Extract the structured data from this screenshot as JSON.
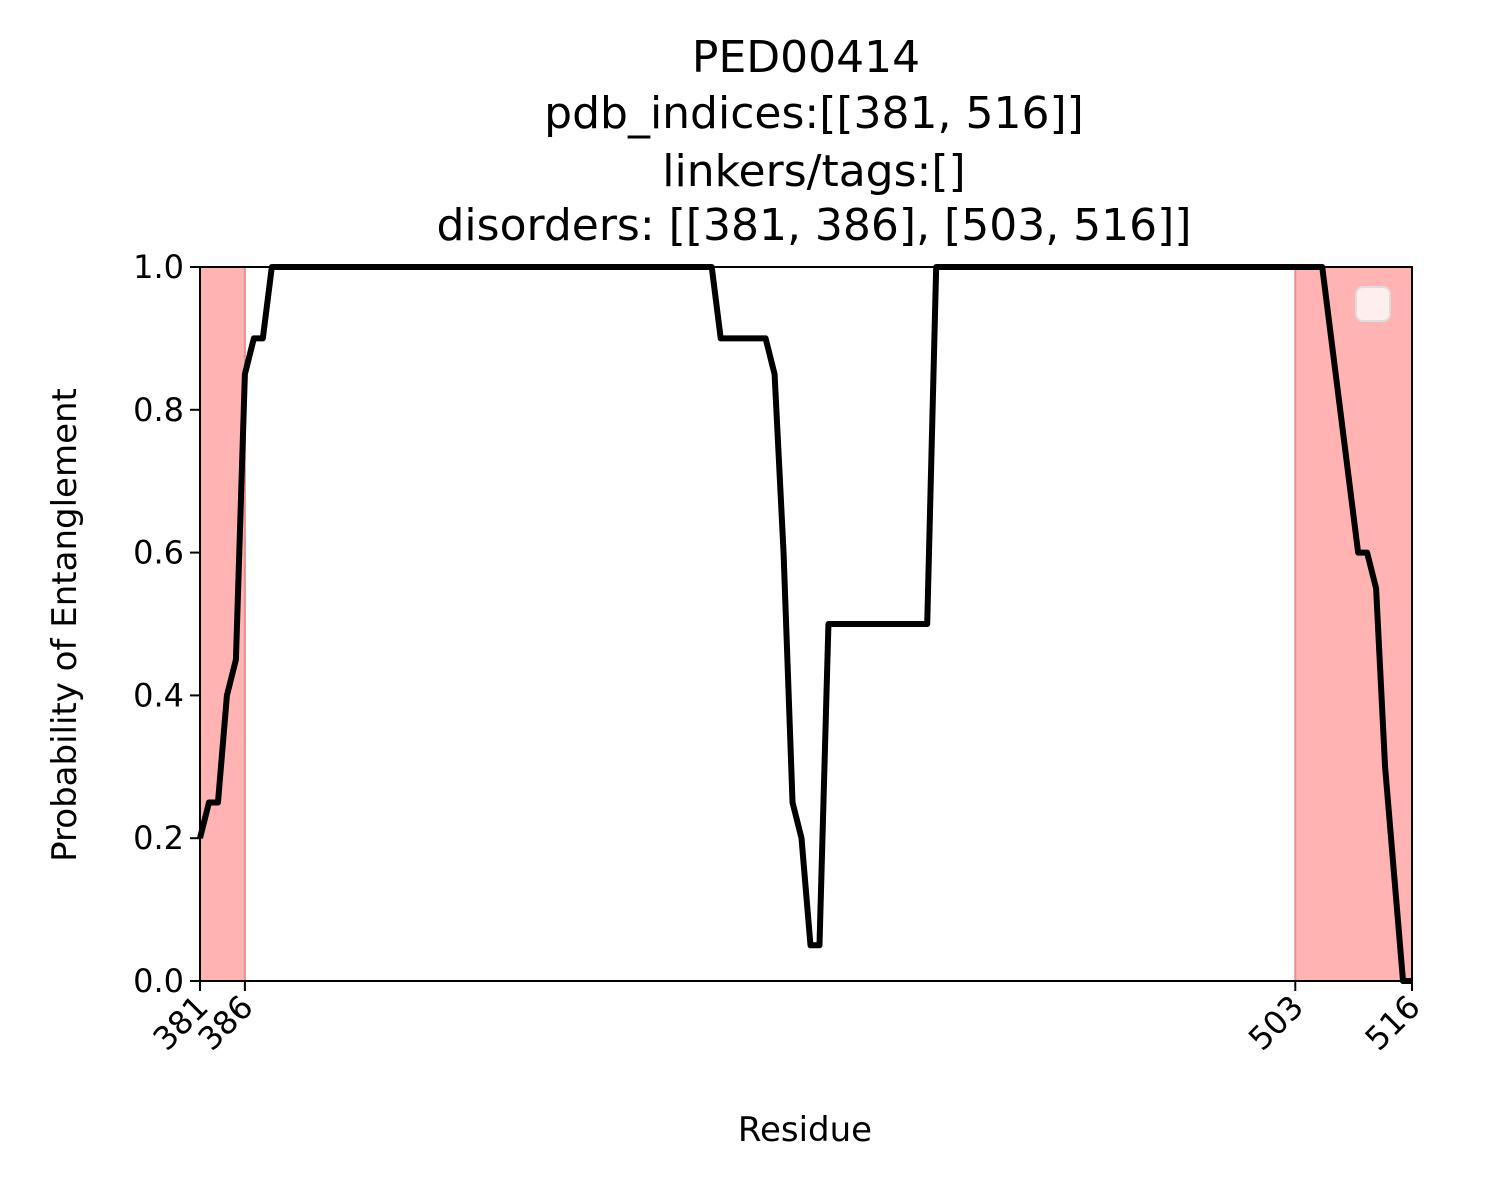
{
  "chart_data": {
    "type": "line",
    "title_lines": [
      "PED00414",
      "pdb_indices:[[381, 516]]",
      "linkers/tags:[]",
      "disorders: [[381, 386], [503, 516]]"
    ],
    "xlabel": "Residue",
    "ylabel": "Probability of Entanglement",
    "xlim": [
      381,
      516
    ],
    "ylim": [
      0,
      1
    ],
    "xticks": [
      381,
      386,
      503,
      516
    ],
    "xtick_labels": [
      "381",
      "386",
      "503",
      "516"
    ],
    "yticks": [
      0.0,
      0.2,
      0.4,
      0.6,
      0.8,
      1.0
    ],
    "ytick_labels": [
      "0.0",
      "0.2",
      "0.4",
      "0.6",
      "0.8",
      "1.0"
    ],
    "disordered_regions": [
      [
        381,
        386
      ],
      [
        503,
        516
      ]
    ],
    "legend": "top-right",
    "colors": {
      "line": "#000000",
      "region_fill": "#ffb3b3",
      "region_edge": "#e89090"
    },
    "series": [
      {
        "x": [
          381,
          382,
          383,
          384,
          385,
          386,
          387,
          388,
          389,
          390,
          391,
          392,
          393,
          394,
          395,
          396,
          397,
          398,
          399,
          400,
          401,
          402,
          403,
          404,
          405,
          406,
          407,
          408,
          409,
          410,
          411,
          412,
          413,
          414,
          415,
          416,
          417,
          418,
          419,
          420,
          421,
          422,
          423,
          424,
          425,
          426,
          427,
          428,
          429,
          430,
          431,
          432,
          433,
          434,
          435,
          436,
          437,
          438,
          439,
          440,
          441,
          442,
          443,
          444,
          445,
          446,
          447,
          448,
          449,
          450,
          451,
          452,
          453,
          454,
          455,
          456,
          457,
          458,
          459,
          460,
          461,
          462,
          463,
          464,
          465,
          466,
          467,
          468,
          469,
          470,
          471,
          472,
          473,
          474,
          475,
          476,
          477,
          478,
          479,
          480,
          481,
          482,
          483,
          484,
          485,
          486,
          487,
          488,
          489,
          490,
          491,
          492,
          493,
          494,
          495,
          496,
          497,
          498,
          499,
          500,
          501,
          502,
          503,
          504,
          505,
          506,
          507,
          508,
          509,
          510,
          511,
          512,
          513,
          514,
          515,
          516
        ],
        "y": [
          0.2,
          0.25,
          0.25,
          0.4,
          0.45,
          0.85,
          0.9,
          0.9,
          1.0,
          1.0,
          1.0,
          1.0,
          1.0,
          1.0,
          1.0,
          1.0,
          1.0,
          1.0,
          1.0,
          1.0,
          1.0,
          1.0,
          1.0,
          1.0,
          1.0,
          1.0,
          1.0,
          1.0,
          1.0,
          1.0,
          1.0,
          1.0,
          1.0,
          1.0,
          1.0,
          1.0,
          1.0,
          1.0,
          1.0,
          1.0,
          1.0,
          1.0,
          1.0,
          1.0,
          1.0,
          1.0,
          1.0,
          1.0,
          1.0,
          1.0,
          1.0,
          1.0,
          1.0,
          1.0,
          1.0,
          1.0,
          1.0,
          1.0,
          0.9,
          0.9,
          0.9,
          0.9,
          0.9,
          0.9,
          0.85,
          0.6,
          0.25,
          0.2,
          0.05,
          0.05,
          0.5,
          0.5,
          0.5,
          0.5,
          0.5,
          0.5,
          0.5,
          0.5,
          0.5,
          0.5,
          0.5,
          0.5,
          1.0,
          1.0,
          1.0,
          1.0,
          1.0,
          1.0,
          1.0,
          1.0,
          1.0,
          1.0,
          1.0,
          1.0,
          1.0,
          1.0,
          1.0,
          1.0,
          1.0,
          1.0,
          1.0,
          1.0,
          1.0,
          1.0,
          1.0,
          1.0,
          1.0,
          1.0,
          1.0,
          1.0,
          1.0,
          1.0,
          1.0,
          1.0,
          1.0,
          1.0,
          1.0,
          1.0,
          1.0,
          1.0,
          1.0,
          1.0,
          1.0,
          1.0,
          1.0,
          1.0,
          0.9,
          0.8,
          0.7,
          0.6,
          0.6,
          0.55,
          0.3,
          0.15,
          0.0,
          0.0
        ]
      }
    ]
  }
}
